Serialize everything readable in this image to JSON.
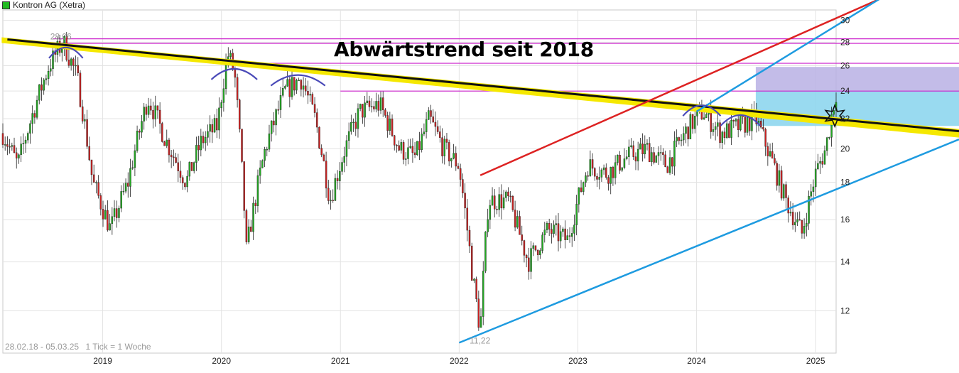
{
  "legend": {
    "label": "Kontron AG (Xetra)",
    "color": "#22bb22"
  },
  "footer": {
    "range": "28.02.18 - 05.03.25",
    "tick_info": "1 Tick = 1 Woche"
  },
  "annotation": {
    "headline": "Abwärtstrend seit 2018"
  },
  "chart_data": {
    "type": "candlestick",
    "title": "",
    "xlabel": "",
    "ylabel": "",
    "x_ticks": [
      "2019",
      "2020",
      "2021",
      "2022",
      "2023",
      "2024",
      "2025"
    ],
    "y_ticks": [
      12,
      14,
      16,
      18,
      20,
      22,
      24,
      26,
      28,
      30
    ],
    "y_scale": "log",
    "ylim": [
      10.5,
      31
    ],
    "xlim": [
      "2018-02-28",
      "2025-03-05"
    ],
    "grid": true,
    "up_color": "#22aa22",
    "down_color": "#cc2222",
    "labels": [
      {
        "text": "28,06",
        "date": "2018-09-01",
        "value": 28.06
      },
      {
        "text": "11,22",
        "date": "2022-03-07",
        "value": 11.22
      }
    ],
    "anchors": [
      [
        "2018-02-28",
        21.0
      ],
      [
        "2018-04-15",
        19.0
      ],
      [
        "2018-07-20",
        26.0
      ],
      [
        "2018-09-01",
        28.06
      ],
      [
        "2018-10-15",
        25.0
      ],
      [
        "2018-12-01",
        18.0
      ],
      [
        "2019-01-25",
        15.5
      ],
      [
        "2019-03-20",
        18.0
      ],
      [
        "2019-05-20",
        23.5
      ],
      [
        "2019-07-15",
        20.5
      ],
      [
        "2019-09-15",
        18.0
      ],
      [
        "2019-11-01",
        20.5
      ],
      [
        "2019-12-20",
        21.5
      ],
      [
        "2020-01-20",
        27.0
      ],
      [
        "2020-02-10",
        25.5
      ],
      [
        "2020-03-18",
        14.5
      ],
      [
        "2020-05-15",
        20.0
      ],
      [
        "2020-07-15",
        24.0
      ],
      [
        "2020-09-01",
        25.0
      ],
      [
        "2020-10-15",
        22.0
      ],
      [
        "2020-11-30",
        17.0
      ],
      [
        "2021-01-15",
        20.0
      ],
      [
        "2021-03-01",
        22.5
      ],
      [
        "2021-05-01",
        23.0
      ],
      [
        "2021-07-01",
        20.0
      ],
      [
        "2021-08-20",
        19.5
      ],
      [
        "2021-10-01",
        22.0
      ],
      [
        "2021-11-15",
        20.0
      ],
      [
        "2021-12-31",
        19.0
      ],
      [
        "2022-02-10",
        13.5
      ],
      [
        "2022-03-07",
        11.22
      ],
      [
        "2022-04-01",
        17.0
      ],
      [
        "2022-06-01",
        17.0
      ],
      [
        "2022-08-01",
        14.0
      ],
      [
        "2022-10-01",
        15.5
      ],
      [
        "2022-12-01",
        15.0
      ],
      [
        "2023-02-01",
        19.0
      ],
      [
        "2023-04-01",
        18.5
      ],
      [
        "2023-06-01",
        19.5
      ],
      [
        "2023-08-01",
        20.0
      ],
      [
        "2023-10-01",
        19.0
      ],
      [
        "2023-12-10",
        21.5
      ],
      [
        "2024-01-20",
        22.5
      ],
      [
        "2024-03-15",
        21.0
      ],
      [
        "2024-05-15",
        21.5
      ],
      [
        "2024-07-01",
        22.0
      ],
      [
        "2024-08-15",
        19.5
      ],
      [
        "2024-10-01",
        17.0
      ],
      [
        "2024-11-20",
        15.3
      ],
      [
        "2025-01-01",
        18.5
      ],
      [
        "2025-02-01",
        20.0
      ],
      [
        "2025-03-05",
        23.9
      ]
    ],
    "overlays": {
      "downtrend": {
        "color": "#111111",
        "band": "#f5e800",
        "from": [
          "2018-05-01",
          28.0
        ],
        "to": [
          "2025-03-05",
          21.9
        ]
      },
      "channel_upper": {
        "color": "#dd2222",
        "from": [
          "2022-03-07",
          18.4
        ],
        "to": [
          "2025-03-05",
          30.2
        ]
      },
      "channel_lower": {
        "color": "#1e9be0",
        "from": [
          "2022-01-01",
          10.85
        ],
        "to": [
          "2025-03-05",
          17.6
        ]
      },
      "channel_mid": {
        "color": "#1e9be0",
        "from": [
          "2024-01-01",
          22.5
        ],
        "to": [
          "2025-03-05",
          29.5
        ]
      },
      "resistance_levels": [
        28.3,
        27.9,
        26.2,
        24.0
      ],
      "resistance_color": "#cc22cc",
      "zone_upper": {
        "color": "#b9b0e4",
        "from": 24.0,
        "to": 25.9
      },
      "zone_lower": {
        "color": "#8ed6ee",
        "from": 21.5,
        "to": 24.0
      },
      "arcs": [
        [
          "2018-07-20",
          "2018-11-01",
          27.6
        ],
        [
          "2019-12-01",
          "2020-04-20",
          25.8
        ],
        [
          "2020-06-01",
          "2020-11-15",
          25.3
        ],
        [
          "2023-11-20",
          "2024-03-15",
          23.0
        ],
        [
          "2024-03-15",
          "2024-07-15",
          22.3
        ]
      ],
      "star": {
        "date": "2025-03-01",
        "value": 22.2
      }
    }
  }
}
